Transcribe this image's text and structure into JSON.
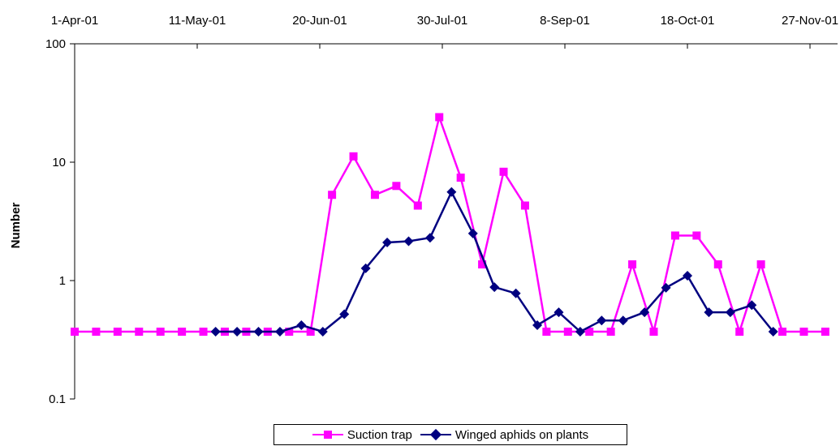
{
  "chart_data": {
    "type": "line",
    "title": "",
    "xlabel": "",
    "ylabel": "Number",
    "y_scale": "log",
    "ylim": [
      0.1,
      100
    ],
    "y_ticks": [
      "0.1",
      "1",
      "10",
      "100"
    ],
    "x_axis_position": "top",
    "xlim": [
      "2001-04-01",
      "2001-12-06"
    ],
    "x_ticks": [
      "1-Apr-01",
      "11-May-01",
      "20-Jun-01",
      "30-Jul-01",
      "8-Sep-01",
      "18-Oct-01",
      "27-Nov-01"
    ],
    "legend_position": "bottom",
    "series": [
      {
        "name": "Suction trap",
        "color": "#ff00ff",
        "marker": "square",
        "points": [
          [
            "2001-04-01",
            0.37
          ],
          [
            "2001-04-08",
            0.37
          ],
          [
            "2001-04-15",
            0.37
          ],
          [
            "2001-04-22",
            0.37
          ],
          [
            "2001-04-29",
            0.37
          ],
          [
            "2001-05-06",
            0.37
          ],
          [
            "2001-05-13",
            0.37
          ],
          [
            "2001-05-20",
            0.37
          ],
          [
            "2001-05-27",
            0.37
          ],
          [
            "2001-06-03",
            0.37
          ],
          [
            "2001-06-10",
            0.37
          ],
          [
            "2001-06-17",
            0.37
          ],
          [
            "2001-06-24",
            5.3
          ],
          [
            "2001-07-01",
            11.2
          ],
          [
            "2001-07-08",
            5.3
          ],
          [
            "2001-07-15",
            6.3
          ],
          [
            "2001-07-22",
            4.3
          ],
          [
            "2001-07-29",
            24.0
          ],
          [
            "2001-08-05",
            7.4
          ],
          [
            "2001-08-12",
            1.37
          ],
          [
            "2001-08-19",
            8.3
          ],
          [
            "2001-08-26",
            4.3
          ],
          [
            "2001-09-02",
            0.37
          ],
          [
            "2001-09-09",
            0.37
          ],
          [
            "2001-09-16",
            0.37
          ],
          [
            "2001-09-23",
            0.37
          ],
          [
            "2001-09-30",
            1.37
          ],
          [
            "2001-10-07",
            0.37
          ],
          [
            "2001-10-14",
            2.4
          ],
          [
            "2001-10-21",
            2.4
          ],
          [
            "2001-10-28",
            1.37
          ],
          [
            "2001-11-04",
            0.37
          ],
          [
            "2001-11-11",
            1.37
          ],
          [
            "2001-11-18",
            0.37
          ],
          [
            "2001-11-25",
            0.37
          ],
          [
            "2001-12-02",
            0.37
          ]
        ]
      },
      {
        "name": "Winged aphids on plants",
        "color": "#000080",
        "marker": "diamond",
        "points": [
          [
            "2001-05-17",
            0.37
          ],
          [
            "2001-05-24",
            0.37
          ],
          [
            "2001-05-31",
            0.37
          ],
          [
            "2001-06-07",
            0.37
          ],
          [
            "2001-06-14",
            0.42
          ],
          [
            "2001-06-21",
            0.37
          ],
          [
            "2001-06-28",
            0.52
          ],
          [
            "2001-07-05",
            1.27
          ],
          [
            "2001-07-12",
            2.1
          ],
          [
            "2001-07-19",
            2.15
          ],
          [
            "2001-07-26",
            2.3
          ],
          [
            "2001-08-02",
            5.6
          ],
          [
            "2001-08-09",
            2.5
          ],
          [
            "2001-08-16",
            0.88
          ],
          [
            "2001-08-23",
            0.78
          ],
          [
            "2001-08-30",
            0.42
          ],
          [
            "2001-09-06",
            0.54
          ],
          [
            "2001-09-13",
            0.37
          ],
          [
            "2001-09-20",
            0.46
          ],
          [
            "2001-09-27",
            0.46
          ],
          [
            "2001-10-04",
            0.54
          ],
          [
            "2001-10-11",
            0.87
          ],
          [
            "2001-10-18",
            1.1
          ],
          [
            "2001-10-25",
            0.54
          ],
          [
            "2001-11-01",
            0.54
          ],
          [
            "2001-11-08",
            0.62
          ],
          [
            "2001-11-15",
            0.37
          ]
        ]
      }
    ]
  }
}
